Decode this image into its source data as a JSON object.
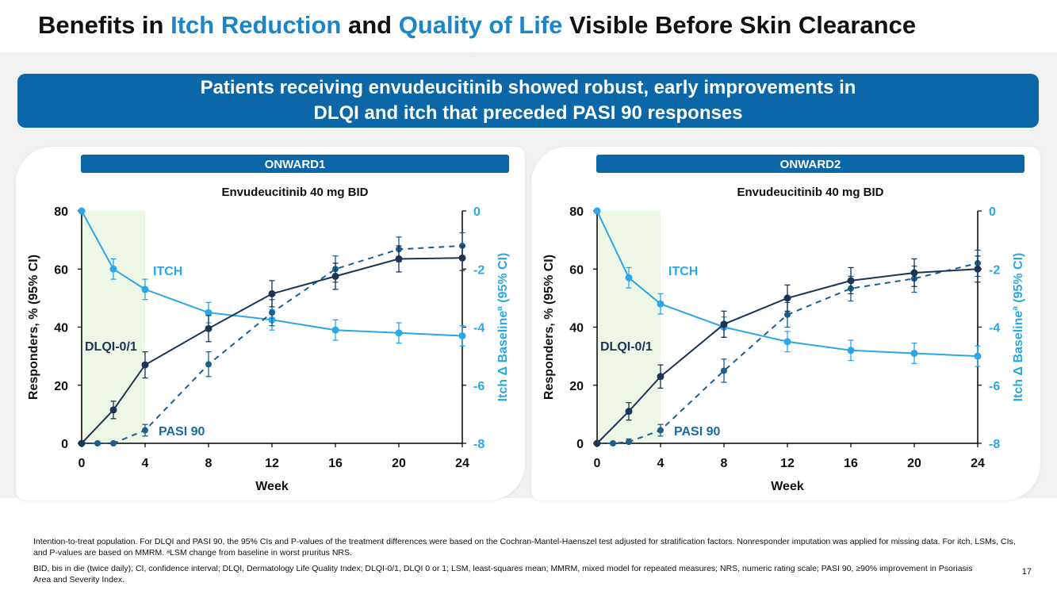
{
  "slide": {
    "title_a": "Benefits in ",
    "title_b": "Itch Reduction",
    "title_c": " and ",
    "title_d": "Quality of Life",
    "title_e": " Visible Before Skin Clearance",
    "banner_line1": "Patients receiving envudeucitinib showed robust, early improvements in",
    "banner_line2": "DLQI and itch that preceded PASI 90 responses",
    "footnote1": "Intention-to-treat population. For DLQI and PASI 90, the 95% CIs and P-values of the treatment differences were based on the Cochran-Mantel-Haenszel test adjusted for stratification factors. Nonresponder imputation was applied for missing data. For itch, LSMs, CIs, and P-values are based on MMRM. ᵃLSM change from baseline in worst pruritus NRS.",
    "footnote2": "BID, bis in die (twice daily); CI, confidence interval; DLQI, Dermatology Life Quality Index; DLQI-0/1, DLQI 0 or 1; LSM, least-squares mean; MMRM, mixed model for repeated measures; NRS, numeric rating scale; PASI 90, ≥90% improvement in Psoriasis Area and Severity Index.",
    "page_number": "17"
  },
  "colors": {
    "navy": "#1b3556",
    "dash": "#1a5f8e",
    "itch": "#29a7e6",
    "shade": "#eef6e6",
    "banner": "#0b67a8"
  },
  "chart_data": [
    {
      "type": "line",
      "header": "ONWARD1",
      "title": "Envudeucitinib 40 mg BID",
      "xlabel": "Week",
      "ylabel": "Responders, % (95% CI)",
      "y2label_a": "Itch Δ Baseline",
      "y2label_sup": "a",
      "y2label_b": " (95% CI)",
      "xlim": [
        0,
        24
      ],
      "xticks": [
        0,
        4,
        8,
        12,
        16,
        20,
        24
      ],
      "ylim": [
        0,
        80
      ],
      "yticks": [
        0,
        20,
        40,
        60,
        80
      ],
      "y2lim": [
        -8,
        0
      ],
      "y2ticks": [
        0,
        -2,
        -4,
        -6,
        -8
      ],
      "shaded_weeks": [
        0,
        4
      ],
      "labels": {
        "itch": "ITCH",
        "dlqi": "DLQI-0/1",
        "pasi": "PASI 90"
      },
      "series": [
        {
          "name": "DLQI-0/1",
          "axis": "left",
          "style": "solid",
          "x": [
            0,
            2,
            4,
            8,
            12,
            16,
            20,
            24
          ],
          "values": [
            0,
            11.5,
            27,
            39.5,
            51.5,
            57.5,
            63.5,
            63.8
          ],
          "ci_low": [
            0,
            8.5,
            22.5,
            35,
            47,
            53,
            59,
            59.5
          ],
          "ci_high": [
            0,
            14.5,
            31.5,
            44,
            56,
            62,
            68,
            68
          ]
        },
        {
          "name": "PASI 90",
          "axis": "left",
          "style": "dashed",
          "x": [
            0,
            1,
            2,
            4,
            8,
            12,
            16,
            20,
            24
          ],
          "values": [
            0,
            0,
            0,
            4.5,
            27.2,
            45,
            60,
            66.8,
            68
          ],
          "ci_low": [
            0,
            0,
            0,
            2.5,
            23,
            40.5,
            55.5,
            62.5,
            63.5
          ],
          "ci_high": [
            0,
            0,
            0,
            6.5,
            31.5,
            49.5,
            64.5,
            71,
            72.5
          ]
        },
        {
          "name": "ITCH",
          "axis": "right",
          "style": "solid",
          "x": [
            0,
            2,
            4,
            8,
            12,
            16,
            20,
            24
          ],
          "values": [
            0,
            -2,
            -2.7,
            -3.5,
            -3.75,
            -4.1,
            -4.2,
            -4.3
          ],
          "ci_low": [
            0,
            -2.35,
            -3.05,
            -3.85,
            -4.1,
            -4.45,
            -4.55,
            -4.65
          ],
          "ci_high": [
            0,
            -1.65,
            -2.35,
            -3.15,
            -3.4,
            -3.75,
            -3.85,
            -3.95
          ]
        }
      ]
    },
    {
      "type": "line",
      "header": "ONWARD2",
      "title": "Envudeucitinib 40 mg BID",
      "xlabel": "Week",
      "ylabel": "Responders, % (95% CI)",
      "y2label_a": "Itch Δ Baseline",
      "y2label_sup": "a",
      "y2label_b": " (95% CI)",
      "xlim": [
        0,
        24
      ],
      "xticks": [
        0,
        4,
        8,
        12,
        16,
        20,
        24
      ],
      "ylim": [
        0,
        80
      ],
      "yticks": [
        0,
        20,
        40,
        60,
        80
      ],
      "y2lim": [
        -8,
        0
      ],
      "y2ticks": [
        0,
        -2,
        -4,
        -6,
        -8
      ],
      "shaded_weeks": [
        0,
        4
      ],
      "labels": {
        "itch": "ITCH",
        "dlqi": "DLQI-0/1",
        "pasi": "PASI 90"
      },
      "series": [
        {
          "name": "DLQI-0/1",
          "axis": "left",
          "style": "solid",
          "x": [
            0,
            2,
            4,
            8,
            12,
            16,
            20,
            24
          ],
          "values": [
            0,
            11,
            23,
            41,
            50,
            56,
            58.7,
            60
          ],
          "ci_low": [
            0,
            8,
            19,
            36.5,
            45.5,
            51.5,
            54,
            55.5
          ],
          "ci_high": [
            0,
            14,
            27,
            45.5,
            54.5,
            60.5,
            63.5,
            64.5
          ]
        },
        {
          "name": "PASI 90",
          "axis": "left",
          "style": "dashed",
          "x": [
            0,
            1,
            2,
            4,
            8,
            12,
            16,
            20,
            24
          ],
          "values": [
            0,
            0,
            0.5,
            4.5,
            25,
            44.3,
            53.3,
            56.7,
            62
          ],
          "ci_low": [
            0,
            0,
            0,
            2.5,
            21,
            40,
            49,
            52,
            57.5
          ],
          "ci_high": [
            0,
            0,
            1.5,
            6.5,
            29,
            48.5,
            57.5,
            61,
            66.5
          ]
        },
        {
          "name": "ITCH",
          "axis": "right",
          "style": "solid",
          "x": [
            0,
            2,
            4,
            8,
            12,
            16,
            20,
            24
          ],
          "values": [
            0,
            -2.3,
            -3.2,
            -4,
            -4.5,
            -4.8,
            -4.9,
            -5
          ],
          "ci_low": [
            0,
            -2.65,
            -3.55,
            -4.35,
            -4.85,
            -5.15,
            -5.25,
            -5.35
          ],
          "ci_high": [
            0,
            -1.95,
            -2.85,
            -3.65,
            -4.15,
            -4.45,
            -4.55,
            -4.65
          ]
        }
      ]
    }
  ]
}
